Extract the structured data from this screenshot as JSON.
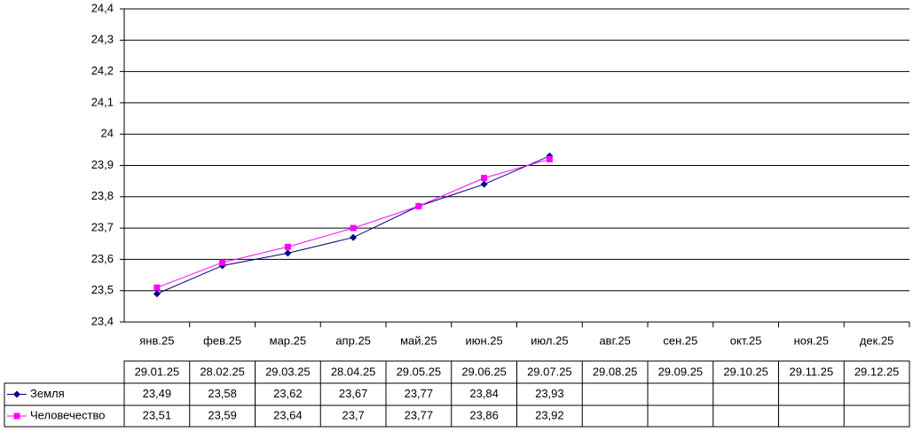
{
  "chart_data": {
    "type": "line",
    "categories": [
      "янв.25",
      "фев.25",
      "мар.25",
      "апр.25",
      "май.25",
      "июн.25",
      "июл.25",
      "авг.25",
      "сен.25",
      "окт.25",
      "ноя.25",
      "дек.25"
    ],
    "dates": [
      "29.01.25",
      "28.02.25",
      "29.03.25",
      "28.04.25",
      "29.05.25",
      "29.06.25",
      "29.07.25",
      "29.08.25",
      "29.09.25",
      "29.10.25",
      "29.11.25",
      "29.12.25"
    ],
    "series": [
      {
        "name": "Земля",
        "color": "#000080",
        "marker": "diamond",
        "values": [
          23.49,
          23.58,
          23.62,
          23.67,
          23.77,
          23.84,
          23.93,
          null,
          null,
          null,
          null,
          null
        ],
        "value_labels": [
          "23,49",
          "23,58",
          "23,62",
          "23,67",
          "23,77",
          "23,84",
          "23,93",
          null,
          null,
          null,
          null,
          null
        ]
      },
      {
        "name": "Человечество",
        "color": "#ff00ff",
        "marker": "square",
        "values": [
          23.51,
          23.59,
          23.64,
          23.7,
          23.77,
          23.86,
          23.92,
          null,
          null,
          null,
          null,
          null
        ],
        "value_labels": [
          "23,51",
          "23,59",
          "23,64",
          "23,7",
          "23,77",
          "23,86",
          "23,92",
          null,
          null,
          null,
          null,
          null
        ]
      }
    ],
    "ylim": [
      23.4,
      24.4
    ],
    "yticks": [
      {
        "value": 23.4,
        "label": "23,4"
      },
      {
        "value": 23.5,
        "label": "23,5"
      },
      {
        "value": 23.6,
        "label": "23,6"
      },
      {
        "value": 23.7,
        "label": "23,7"
      },
      {
        "value": 23.8,
        "label": "23,8"
      },
      {
        "value": 23.9,
        "label": "23,9"
      },
      24,
      {
        "value": 24.1,
        "label": "24,1"
      },
      {
        "value": 24.2,
        "label": "24,2"
      },
      {
        "value": 24.3,
        "label": "24,3"
      },
      {
        "value": 24.4,
        "label": "24,4"
      }
    ],
    "grid": true
  }
}
